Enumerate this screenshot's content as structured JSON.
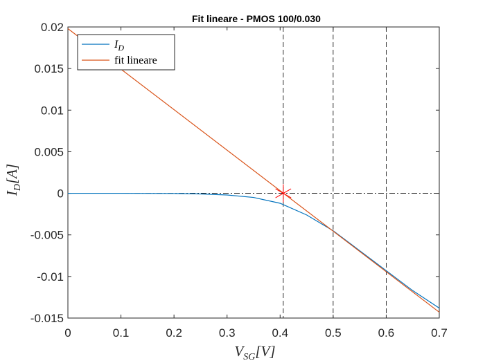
{
  "chart_data": {
    "type": "line",
    "title": "Fit lineare - PMOS 100/0.030",
    "xlabel": {
      "main": "V",
      "sub": "SG",
      "unit": "[V]"
    },
    "ylabel": {
      "main": "I",
      "sub": "D",
      "unit": "[A]"
    },
    "xlim": [
      0,
      0.7
    ],
    "ylim": [
      -0.015,
      0.02
    ],
    "xticks": [
      "0",
      "0.1",
      "0.2",
      "0.3",
      "0.4",
      "0.5",
      "0.6",
      "0.7"
    ],
    "yticks": [
      "-0.015",
      "-0.01",
      "-0.005",
      "0",
      "0.005",
      "0.01",
      "0.015",
      "0.02"
    ],
    "grid": false,
    "legend_position": "top-left",
    "series": [
      {
        "name": "I_D",
        "legend_main": "I",
        "legend_sub": "D",
        "color": "#0072BD",
        "x": [
          0,
          0.1,
          0.2,
          0.25,
          0.3,
          0.35,
          0.4,
          0.45,
          0.5,
          0.55,
          0.6,
          0.65,
          0.7
        ],
        "y": [
          0,
          0,
          -2e-05,
          -8e-05,
          -0.0002,
          -0.0005,
          -0.0012,
          -0.0026,
          -0.0045,
          -0.0069,
          -0.0093,
          -0.0117,
          -0.0138
        ]
      },
      {
        "name": "fit lineare",
        "legend_main": "fit lineare",
        "color": "#D95319",
        "x": [
          0,
          0.7
        ],
        "y": [
          0.0198,
          -0.0143
        ]
      }
    ],
    "marker": {
      "x": 0.406,
      "y": 0,
      "symbol": "asterisk",
      "color": "#FF0000"
    },
    "zero_line": {
      "y": 0,
      "style": "dash-dot",
      "color": "#000000"
    },
    "vlines": [
      {
        "x": 0.406,
        "style": "dashed",
        "color": "#000000"
      },
      {
        "x": 0.5,
        "style": "dashed",
        "color": "#000000"
      },
      {
        "x": 0.6,
        "style": "dashed",
        "color": "#000000"
      }
    ]
  }
}
